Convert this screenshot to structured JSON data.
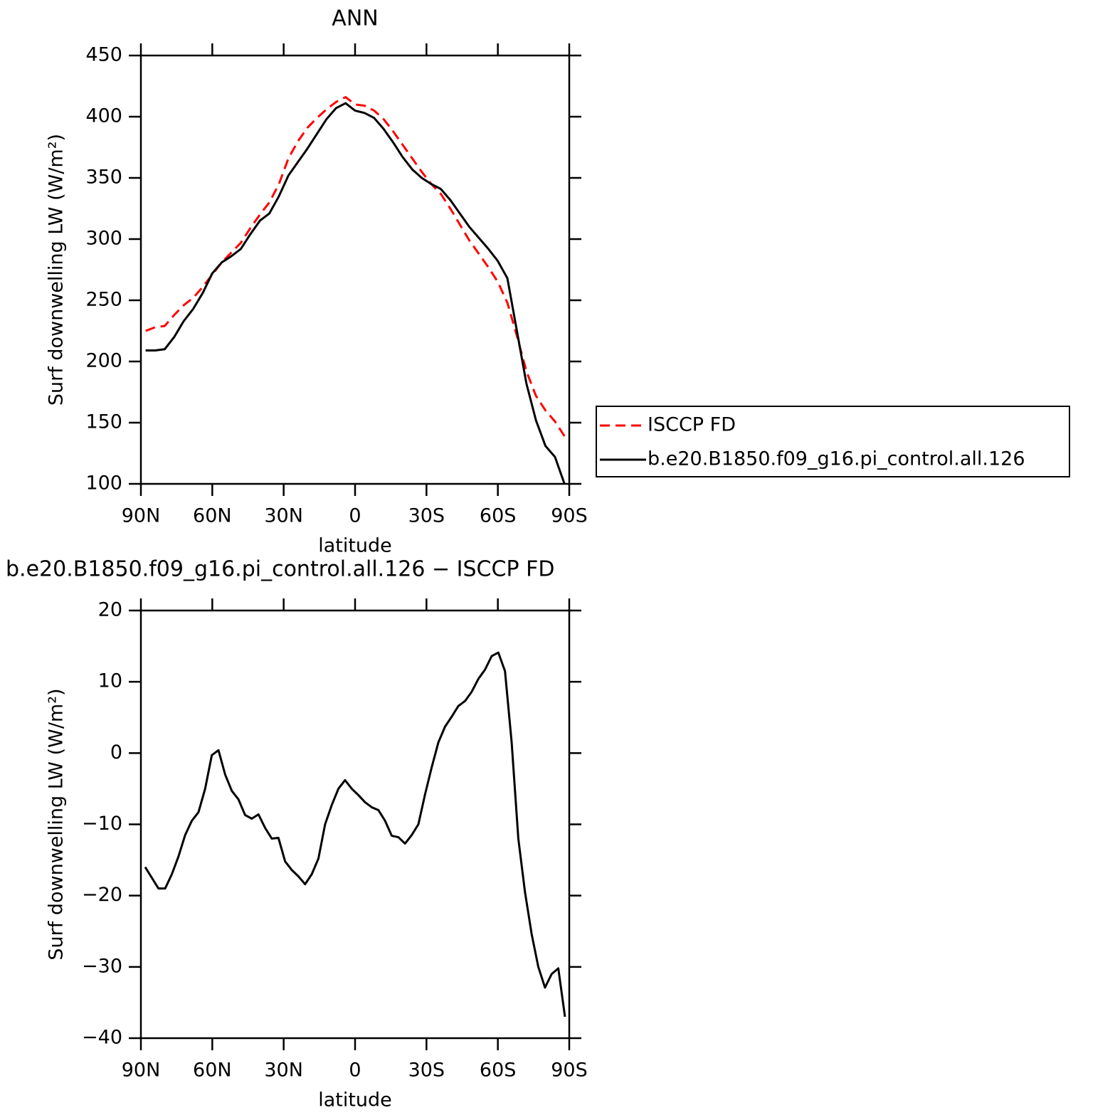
{
  "chart_data": [
    {
      "type": "line",
      "title": "ANN",
      "xlabel": "latitude",
      "ylabel": "Surf downwelling LW (W/m²)",
      "x": [
        88,
        84,
        80,
        76,
        72,
        68,
        64,
        60,
        56,
        52,
        48,
        44,
        40,
        36,
        32,
        28,
        24,
        20,
        16,
        12,
        8,
        4,
        0,
        -4,
        -8,
        -12,
        -16,
        -20,
        -24,
        -28,
        -32,
        -36,
        -40,
        -44,
        -48,
        -52,
        -56,
        -60,
        -64,
        -68,
        -72,
        -76,
        -80,
        -84,
        -88
      ],
      "xlim": [
        90,
        -90
      ],
      "xticks": [
        {
          "value": 90,
          "label": "90N"
        },
        {
          "value": 60,
          "label": "60N"
        },
        {
          "value": 30,
          "label": "30N"
        },
        0,
        {
          "value": -30,
          "label": "30S"
        },
        {
          "value": -60,
          "label": "60S"
        },
        {
          "value": -90,
          "label": "90S"
        }
      ],
      "ylim": [
        100,
        450
      ],
      "yticks": [
        100,
        150,
        200,
        250,
        300,
        350,
        400,
        450
      ],
      "legend": "right",
      "series": [
        {
          "name": "ISCCP FD",
          "color": "#ff0000",
          "dash": true,
          "values": [
            225,
            228,
            229,
            238,
            246,
            252,
            261,
            271,
            281,
            289,
            297,
            309,
            320,
            330,
            345,
            366,
            380,
            391,
            399,
            406,
            412,
            416,
            410,
            409,
            405,
            398,
            388,
            377,
            366,
            355,
            345,
            337,
            325,
            312,
            299,
            288,
            277,
            265,
            248,
            221,
            192,
            172,
            160,
            151,
            139
          ]
        },
        {
          "name": "b.e20.B1850.f09_g16.pi_control.all.126",
          "color": "#000000",
          "dash": false,
          "values": [
            209,
            209,
            210,
            220,
            233,
            243,
            256,
            272,
            281,
            286,
            292,
            304,
            315,
            321,
            335,
            352,
            363,
            374,
            386,
            398,
            407,
            411,
            405,
            403,
            399,
            390,
            379,
            367,
            357,
            350,
            345,
            341,
            332,
            321,
            310,
            301,
            292,
            282,
            268,
            225,
            182,
            152,
            131,
            122,
            100
          ]
        }
      ]
    },
    {
      "type": "line",
      "title": "b.e20.B1850.f09_g16.pi_control.all.126 − ISCCP FD",
      "xlabel": "latitude",
      "ylabel": "Surf downwelling LW (W/m²)",
      "x": [
        88.2,
        85.4,
        82.6,
        79.8,
        77,
        74.2,
        71.4,
        68.6,
        65.8,
        63,
        60.2,
        57.4,
        54.6,
        51.8,
        49,
        46.2,
        43.4,
        40.6,
        37.8,
        35,
        32.2,
        29.4,
        26.6,
        23.8,
        21,
        18.2,
        15.4,
        12.6,
        9.8,
        7,
        4.2,
        1.4,
        -1.4,
        -4.2,
        -7,
        -9.8,
        -12.6,
        -15.4,
        -18.2,
        -21,
        -23.8,
        -26.6,
        -29.4,
        -32.2,
        -35,
        -37.8,
        -40.6,
        -43.4,
        -46.2,
        -49,
        -51.8,
        -54.6,
        -57.4,
        -60.2,
        -63,
        -65.8,
        -68.6,
        -71.4,
        -74.2,
        -77,
        -79.8,
        -82.6,
        -85.4,
        -88.2
      ],
      "xlim": [
        90,
        -90
      ],
      "xticks": [
        {
          "value": 90,
          "label": "90N"
        },
        {
          "value": 60,
          "label": "60N"
        },
        {
          "value": 30,
          "label": "30N"
        },
        0,
        {
          "value": -30,
          "label": "30S"
        },
        {
          "value": -60,
          "label": "60S"
        },
        {
          "value": -90,
          "label": "90S"
        }
      ],
      "ylim": [
        -40,
        20
      ],
      "yticks": [
        {
          "value": -40,
          "label": "−40"
        },
        {
          "value": -30,
          "label": "−30"
        },
        {
          "value": -20,
          "label": "−20"
        },
        {
          "value": -10,
          "label": "−10"
        },
        0,
        10,
        20
      ],
      "series": [
        {
          "color": "#000000",
          "dash": false,
          "values": [
            -16,
            -17.5,
            -19,
            -19,
            -17,
            -14.5,
            -11.5,
            -9.5,
            -8.3,
            -5,
            -0.3,
            0.4,
            -3,
            -5.3,
            -6.5,
            -8.7,
            -9.2,
            -8.6,
            -10.5,
            -12,
            -11.9,
            -15.2,
            -16.4,
            -17.3,
            -18.4,
            -17,
            -14.8,
            -10,
            -7.3,
            -5,
            -3.8,
            -5,
            -5.9,
            -6.9,
            -7.6,
            -8,
            -9.5,
            -11.6,
            -11.8,
            -12.7,
            -11.5,
            -10,
            -5.8,
            -2,
            1.5,
            3.7,
            5.1,
            6.6,
            7.3,
            8.6,
            10.4,
            11.7,
            13.6,
            14.1,
            11.5,
            1.5,
            -12,
            -19.5,
            -25.4,
            -30,
            -32.9,
            -31,
            -30.2,
            -37
          ]
        }
      ]
    }
  ]
}
